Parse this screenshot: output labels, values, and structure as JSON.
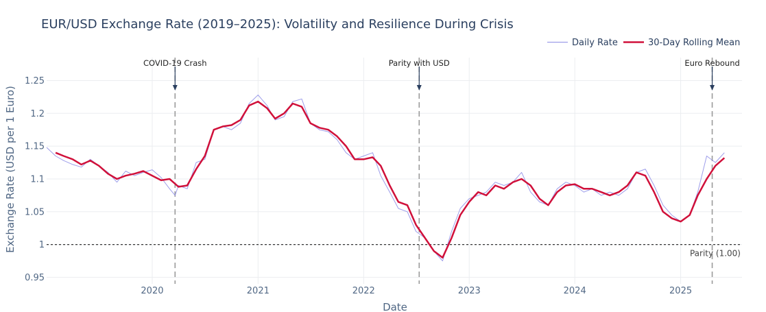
{
  "chart_data": {
    "type": "line",
    "title": "EUR/USD Exchange Rate (2019–2025): Volatility and Resilience During Crisis",
    "xlabel": "Date",
    "ylabel": "Exchange Rate (USD per 1 Euro)",
    "x_range": [
      "2019-01-01",
      "2025-08-01"
    ],
    "y_range": [
      0.94,
      1.285
    ],
    "x_ticks": [
      "2020",
      "2021",
      "2022",
      "2023",
      "2024",
      "2025"
    ],
    "y_ticks": [
      "0.95",
      "1",
      "1.05",
      "1.1",
      "1.15",
      "1.2",
      "1.25"
    ],
    "y_tick_values": [
      0.95,
      1.0,
      1.05,
      1.1,
      1.15,
      1.2,
      1.25
    ],
    "grid": true,
    "legend_position": "top-right",
    "colors": {
      "daily": "#8c8ce6",
      "rolling": "#d0103a",
      "title": "#2a3f5f"
    },
    "series": [
      {
        "name": "Daily Rate",
        "style": "thin",
        "x": [
          "2019-01-01",
          "2019-02-01",
          "2019-03-01",
          "2019-04-01",
          "2019-05-01",
          "2019-06-01",
          "2019-07-01",
          "2019-08-01",
          "2019-09-01",
          "2019-10-01",
          "2019-11-01",
          "2019-12-01",
          "2020-01-01",
          "2020-02-01",
          "2020-03-01",
          "2020-03-20",
          "2020-04-01",
          "2020-05-01",
          "2020-06-01",
          "2020-07-01",
          "2020-08-01",
          "2020-09-01",
          "2020-10-01",
          "2020-11-01",
          "2020-12-01",
          "2021-01-01",
          "2021-02-01",
          "2021-03-01",
          "2021-04-01",
          "2021-05-01",
          "2021-06-01",
          "2021-07-01",
          "2021-08-01",
          "2021-09-01",
          "2021-10-01",
          "2021-11-01",
          "2021-12-01",
          "2022-01-01",
          "2022-02-01",
          "2022-03-01",
          "2022-04-01",
          "2022-05-01",
          "2022-06-01",
          "2022-07-01",
          "2022-08-01",
          "2022-09-01",
          "2022-10-01",
          "2022-11-01",
          "2022-12-01",
          "2023-01-01",
          "2023-02-01",
          "2023-03-01",
          "2023-04-01",
          "2023-05-01",
          "2023-06-01",
          "2023-07-01",
          "2023-08-01",
          "2023-09-01",
          "2023-10-01",
          "2023-11-01",
          "2023-12-01",
          "2024-01-01",
          "2024-02-01",
          "2024-03-01",
          "2024-04-01",
          "2024-05-01",
          "2024-06-01",
          "2024-07-01",
          "2024-08-01",
          "2024-09-01",
          "2024-10-01",
          "2024-11-01",
          "2024-12-01",
          "2025-01-01",
          "2025-02-01",
          "2025-03-01",
          "2025-04-01",
          "2025-05-01",
          "2025-06-01"
        ],
        "y": [
          1.148,
          1.135,
          1.128,
          1.122,
          1.118,
          1.13,
          1.12,
          1.11,
          1.095,
          1.112,
          1.105,
          1.11,
          1.114,
          1.102,
          1.085,
          1.075,
          1.09,
          1.085,
          1.125,
          1.13,
          1.175,
          1.18,
          1.175,
          1.185,
          1.215,
          1.228,
          1.212,
          1.19,
          1.195,
          1.218,
          1.222,
          1.185,
          1.175,
          1.172,
          1.16,
          1.14,
          1.13,
          1.135,
          1.14,
          1.105,
          1.08,
          1.055,
          1.05,
          1.02,
          1.01,
          0.99,
          0.975,
          1.02,
          1.055,
          1.07,
          1.075,
          1.08,
          1.095,
          1.09,
          1.095,
          1.11,
          1.08,
          1.065,
          1.06,
          1.085,
          1.095,
          1.09,
          1.08,
          1.085,
          1.075,
          1.08,
          1.075,
          1.085,
          1.11,
          1.115,
          1.09,
          1.06,
          1.045,
          1.035,
          1.045,
          1.08,
          1.135,
          1.125,
          1.14
        ]
      },
      {
        "name": "30-Day Rolling Mean",
        "style": "thick",
        "x": [
          "2019-02-01",
          "2019-03-01",
          "2019-04-01",
          "2019-05-01",
          "2019-06-01",
          "2019-07-01",
          "2019-08-01",
          "2019-09-01",
          "2019-10-01",
          "2019-11-01",
          "2019-12-01",
          "2020-01-01",
          "2020-02-01",
          "2020-03-01",
          "2020-04-01",
          "2020-05-01",
          "2020-06-01",
          "2020-07-01",
          "2020-08-01",
          "2020-09-01",
          "2020-10-01",
          "2020-11-01",
          "2020-12-01",
          "2021-01-01",
          "2021-02-01",
          "2021-03-01",
          "2021-04-01",
          "2021-05-01",
          "2021-06-01",
          "2021-07-01",
          "2021-08-01",
          "2021-09-01",
          "2021-10-01",
          "2021-11-01",
          "2021-12-01",
          "2022-01-01",
          "2022-02-01",
          "2022-03-01",
          "2022-04-01",
          "2022-05-01",
          "2022-06-01",
          "2022-07-01",
          "2022-08-01",
          "2022-09-01",
          "2022-10-01",
          "2022-11-01",
          "2022-12-01",
          "2023-01-01",
          "2023-02-01",
          "2023-03-01",
          "2023-04-01",
          "2023-05-01",
          "2023-06-01",
          "2023-07-01",
          "2023-08-01",
          "2023-09-01",
          "2023-10-01",
          "2023-11-01",
          "2023-12-01",
          "2024-01-01",
          "2024-02-01",
          "2024-03-01",
          "2024-04-01",
          "2024-05-01",
          "2024-06-01",
          "2024-07-01",
          "2024-08-01",
          "2024-09-01",
          "2024-10-01",
          "2024-11-01",
          "2024-12-01",
          "2025-01-01",
          "2025-02-01",
          "2025-03-01",
          "2025-04-01",
          "2025-05-01",
          "2025-06-01"
        ],
        "y": [
          1.14,
          1.135,
          1.13,
          1.122,
          1.128,
          1.12,
          1.108,
          1.1,
          1.105,
          1.108,
          1.112,
          1.105,
          1.098,
          1.1,
          1.088,
          1.09,
          1.115,
          1.135,
          1.175,
          1.18,
          1.182,
          1.19,
          1.212,
          1.218,
          1.208,
          1.192,
          1.2,
          1.215,
          1.21,
          1.185,
          1.178,
          1.175,
          1.165,
          1.15,
          1.13,
          1.13,
          1.133,
          1.12,
          1.09,
          1.065,
          1.06,
          1.03,
          1.01,
          0.99,
          0.98,
          1.01,
          1.045,
          1.065,
          1.08,
          1.075,
          1.09,
          1.085,
          1.095,
          1.1,
          1.09,
          1.07,
          1.06,
          1.08,
          1.09,
          1.092,
          1.085,
          1.085,
          1.08,
          1.075,
          1.08,
          1.09,
          1.11,
          1.105,
          1.08,
          1.05,
          1.04,
          1.035,
          1.045,
          1.075,
          1.1,
          1.12,
          1.132
        ]
      }
    ],
    "annotations": [
      {
        "text": "COVID-19 Crash",
        "x": "2020-03-20"
      },
      {
        "text": "Parity with USD",
        "x": "2022-07-12"
      },
      {
        "text": "Euro Rebound",
        "x": "2025-04-20"
      }
    ],
    "reference_line": {
      "y": 1.0,
      "label": "Parity (1.00)"
    }
  }
}
